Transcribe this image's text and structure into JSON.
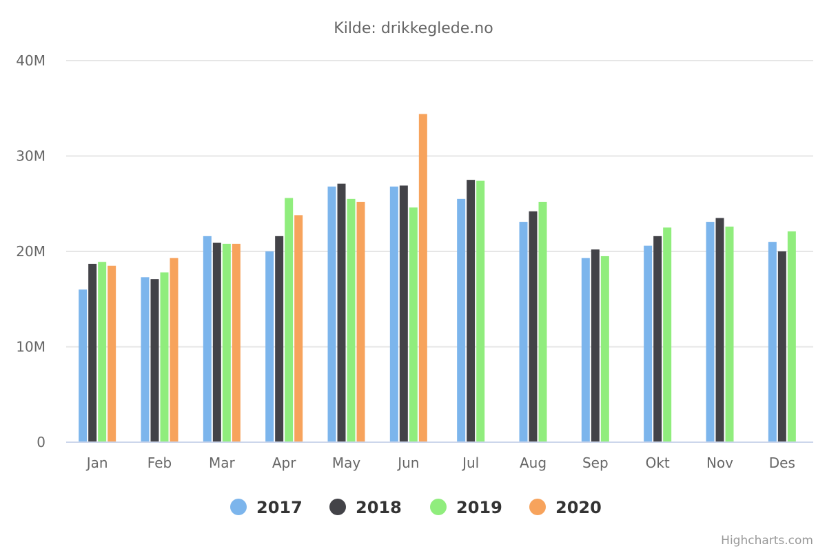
{
  "chart_data": {
    "type": "bar",
    "subtitle": "Kilde: drikkeglede.no",
    "categories": [
      "Jan",
      "Feb",
      "Mar",
      "Apr",
      "May",
      "Jun",
      "Jul",
      "Aug",
      "Sep",
      "Okt",
      "Nov",
      "Des"
    ],
    "series": [
      {
        "name": "2017",
        "color": "#7cb5ec",
        "values": [
          16.0,
          17.3,
          21.6,
          20.0,
          26.8,
          26.8,
          25.5,
          23.1,
          19.3,
          20.6,
          23.1,
          21.0
        ]
      },
      {
        "name": "2018",
        "color": "#434348",
        "values": [
          18.7,
          17.1,
          20.9,
          21.6,
          27.1,
          26.9,
          27.5,
          24.2,
          20.2,
          21.6,
          23.5,
          20.0
        ]
      },
      {
        "name": "2019",
        "color": "#90ed7d",
        "values": [
          18.9,
          17.8,
          20.8,
          25.6,
          25.5,
          24.6,
          27.4,
          25.2,
          19.5,
          22.5,
          22.6,
          22.1
        ]
      },
      {
        "name": "2020",
        "color": "#f7a35c",
        "values": [
          18.5,
          19.3,
          20.8,
          23.8,
          25.2,
          34.4,
          null,
          null,
          null,
          null,
          null,
          null
        ]
      }
    ],
    "ylim": [
      0,
      40
    ],
    "yticks": [
      0,
      10,
      20,
      30,
      40
    ],
    "ytick_labels": [
      "0",
      "10M",
      "20M",
      "30M",
      "40M"
    ],
    "grid": true,
    "legend_position": "bottom-center"
  },
  "credits": "Highcharts.com"
}
